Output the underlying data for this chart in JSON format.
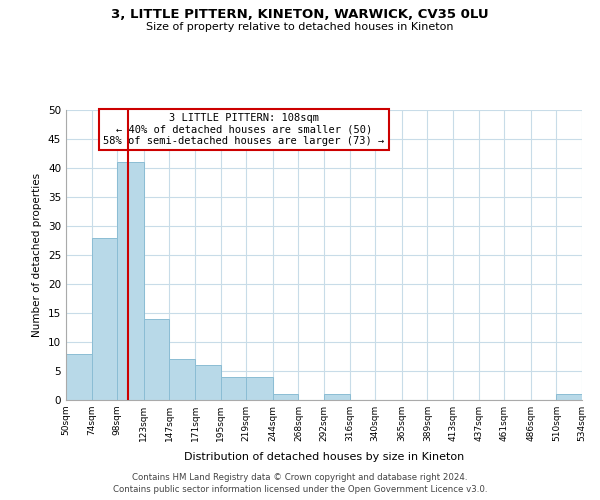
{
  "title": "3, LITTLE PITTERN, KINETON, WARWICK, CV35 0LU",
  "subtitle": "Size of property relative to detached houses in Kineton",
  "xlabel": "Distribution of detached houses by size in Kineton",
  "ylabel": "Number of detached properties",
  "bin_edges": [
    50,
    74,
    98,
    123,
    147,
    171,
    195,
    219,
    244,
    268,
    292,
    316,
    340,
    365,
    389,
    413,
    437,
    461,
    486,
    510,
    534
  ],
  "bar_heights": [
    8,
    28,
    41,
    14,
    7,
    6,
    4,
    4,
    1,
    0,
    1,
    0,
    0,
    0,
    0,
    0,
    0,
    0,
    0,
    1
  ],
  "bar_color": "#b8d9e8",
  "bar_edge_color": "#8bbdd4",
  "tick_labels": [
    "50sqm",
    "74sqm",
    "98sqm",
    "123sqm",
    "147sqm",
    "171sqm",
    "195sqm",
    "219sqm",
    "244sqm",
    "268sqm",
    "292sqm",
    "316sqm",
    "340sqm",
    "365sqm",
    "389sqm",
    "413sqm",
    "437sqm",
    "461sqm",
    "486sqm",
    "510sqm",
    "534sqm"
  ],
  "vline_x": 108,
  "vline_color": "#cc0000",
  "annotation_text": "3 LITTLE PITTERN: 108sqm\n← 40% of detached houses are smaller (50)\n58% of semi-detached houses are larger (73) →",
  "ylim": [
    0,
    50
  ],
  "yticks": [
    0,
    5,
    10,
    15,
    20,
    25,
    30,
    35,
    40,
    45,
    50
  ],
  "footer1": "Contains HM Land Registry data © Crown copyright and database right 2024.",
  "footer2": "Contains public sector information licensed under the Open Government Licence v3.0.",
  "background_color": "#ffffff",
  "grid_color": "#c8dce8"
}
